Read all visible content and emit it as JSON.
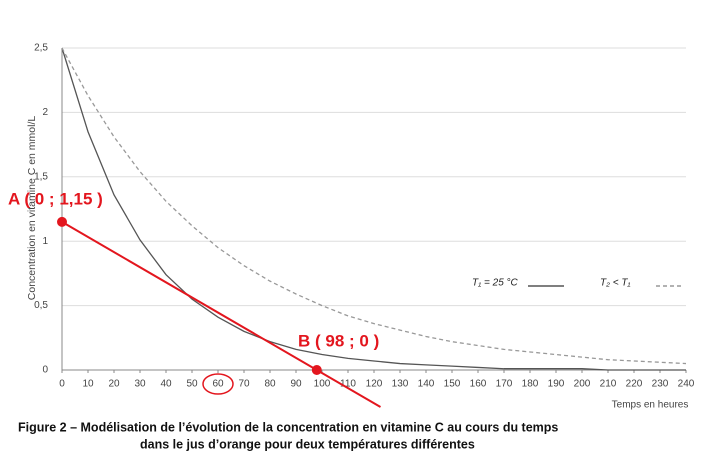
{
  "chart_data": {
    "type": "line",
    "title_lines": [
      "Figure 2 – Modélisation de l’évolution de la concentration en vitamine C au cours du temps",
      "dans le jus d’orange pour deux températures différentes"
    ],
    "x_label": "Temps en heures",
    "y_label": "Concentration en vitamine C en mmol/L",
    "x": [
      0,
      10,
      20,
      30,
      40,
      50,
      60,
      70,
      80,
      90,
      100,
      110,
      120,
      130,
      140,
      150,
      160,
      170,
      180,
      190,
      200,
      210,
      220,
      230,
      240
    ],
    "series": [
      {
        "name": "T₁ = 25 °C",
        "color": "#555555",
        "dash": false,
        "values": [
          2.5,
          1.85,
          1.36,
          1.01,
          0.74,
          0.55,
          0.41,
          0.3,
          0.22,
          0.16,
          0.12,
          0.09,
          0.07,
          0.05,
          0.04,
          0.03,
          0.02,
          0.01,
          0.01,
          0.01,
          0.01,
          0,
          0,
          0,
          0
        ]
      },
      {
        "name": "T₂ < T₁",
        "color": "#999999",
        "dash": true,
        "values": [
          2.5,
          2.13,
          1.81,
          1.54,
          1.31,
          1.12,
          0.95,
          0.81,
          0.69,
          0.59,
          0.5,
          0.42,
          0.36,
          0.31,
          0.26,
          0.22,
          0.19,
          0.16,
          0.14,
          0.12,
          0.1,
          0.08,
          0.07,
          0.06,
          0.05
        ]
      }
    ],
    "tangent": {
      "color": "#e3161e",
      "points": [
        {
          "x": 0,
          "y": 1.15,
          "label": "A ( 0 ; 1,15 )"
        },
        {
          "x": 98,
          "y": 0,
          "label": "B ( 98 ; 0 )"
        }
      ]
    },
    "xlim": [
      0,
      240
    ],
    "ylim": [
      0,
      2.5
    ],
    "xticks": [
      0,
      10,
      20,
      30,
      40,
      50,
      60,
      70,
      80,
      90,
      100,
      110,
      120,
      130,
      140,
      150,
      160,
      170,
      180,
      190,
      200,
      210,
      220,
      230,
      240
    ],
    "yticks": [
      0,
      {
        "value": 0.5,
        "label": "0,5"
      },
      1,
      {
        "value": 1.5,
        "label": "1,5"
      },
      2,
      {
        "value": 2.5,
        "label": "2,5"
      }
    ],
    "grid": true
  }
}
